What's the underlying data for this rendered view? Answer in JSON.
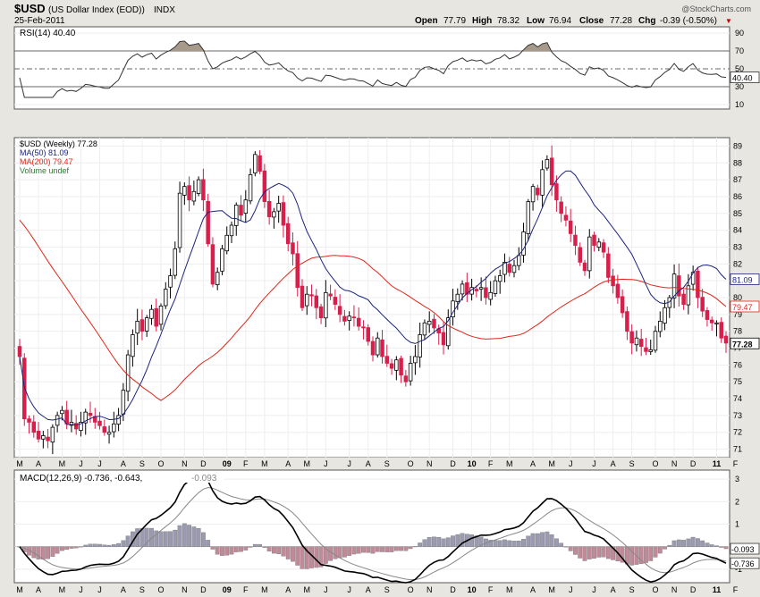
{
  "header": {
    "symbol": "$USD",
    "name": "(US Dollar Index (EOD))",
    "exchange": "INDX",
    "date": "25-Feb-2011",
    "watermark": "@StockCharts.com",
    "open_label": "Open",
    "open": "77.79",
    "high_label": "High",
    "high": "78.32",
    "low_label": "Low",
    "low": "76.94",
    "close_label": "Close",
    "close": "77.28",
    "chg_label": "Chg",
    "chg": "-0.39 (-0.50%)",
    "chg_arrow": "▼"
  },
  "colors": {
    "up_candle": "#ffffff",
    "down_candle": "#d81e4a",
    "ma50": "#1a237e",
    "ma200": "#e0261a",
    "rsi": "#333333",
    "macd": "#000000",
    "signal": "#888888",
    "hist": "#9a9ab0",
    "hist_neg": "#c08a98"
  },
  "rsi_panel": {
    "label": "RSI(14) 40.40",
    "levels": [
      10,
      30,
      50,
      70,
      90
    ],
    "current_value": "40.40"
  },
  "price_panel": {
    "legend": [
      {
        "text": "$USD (Weekly) 77.28",
        "color": "#000000"
      },
      {
        "text": "MA(50) 81.09",
        "color": "#1a237e"
      },
      {
        "text": "MA(200) 79.47",
        "color": "#e0261a"
      },
      {
        "text": "Volume undef",
        "color": "#2e7d32"
      }
    ],
    "yticks": [
      71,
      72,
      73,
      74,
      75,
      76,
      77,
      78,
      79,
      80,
      81,
      82,
      83,
      84,
      85,
      86,
      87,
      88,
      89
    ],
    "badges": [
      {
        "text": "81.09",
        "value": 81.09,
        "color": "#1a237e",
        "bg": "#ffffff"
      },
      {
        "text": "79.47",
        "value": 79.47,
        "color": "#e0261a",
        "bg": "#ffffff"
      },
      {
        "text": "77.28",
        "value": 77.28,
        "color": "#000000",
        "bg": "#ffffff"
      }
    ]
  },
  "macd_panel": {
    "label": "MACD(12,26,9) -0.736, -0.643, ",
    "label_hist": "-0.093",
    "yticks": [
      -1,
      0,
      1,
      2,
      3
    ],
    "badges": [
      {
        "text": "-0.093",
        "value": -0.093
      },
      {
        "text": "-0.736",
        "value": -0.736
      }
    ]
  },
  "x_axis": {
    "labels": [
      {
        "text": "M",
        "week": 0
      },
      {
        "text": "A",
        "week": 4
      },
      {
        "text": "M",
        "week": 9
      },
      {
        "text": "J",
        "week": 13
      },
      {
        "text": "J",
        "week": 17
      },
      {
        "text": "A",
        "week": 22
      },
      {
        "text": "S",
        "week": 26
      },
      {
        "text": "O",
        "week": 30
      },
      {
        "text": "N",
        "week": 35
      },
      {
        "text": "D",
        "week": 39
      },
      {
        "text": "09",
        "week": 44,
        "bold": true
      },
      {
        "text": "F",
        "week": 48
      },
      {
        "text": "M",
        "week": 52
      },
      {
        "text": "A",
        "week": 57
      },
      {
        "text": "M",
        "week": 61
      },
      {
        "text": "J",
        "week": 65
      },
      {
        "text": "J",
        "week": 70
      },
      {
        "text": "A",
        "week": 74
      },
      {
        "text": "S",
        "week": 78
      },
      {
        "text": "O",
        "week": 83
      },
      {
        "text": "N",
        "week": 87
      },
      {
        "text": "D",
        "week": 92
      },
      {
        "text": "10",
        "week": 96,
        "bold": true
      },
      {
        "text": "F",
        "week": 100
      },
      {
        "text": "M",
        "week": 104
      },
      {
        "text": "A",
        "week": 109
      },
      {
        "text": "M",
        "week": 113
      },
      {
        "text": "J",
        "week": 117
      },
      {
        "text": "J",
        "week": 122
      },
      {
        "text": "A",
        "week": 126
      },
      {
        "text": "S",
        "week": 130
      },
      {
        "text": "O",
        "week": 135
      },
      {
        "text": "N",
        "week": 139
      },
      {
        "text": "D",
        "week": 143
      },
      {
        "text": "11",
        "week": 148,
        "bold": true
      },
      {
        "text": "F",
        "week": 152
      }
    ]
  },
  "chart_data": {
    "type": "candlestick",
    "title": "$USD (US Dollar Index (EOD)) INDX",
    "interval": "Weekly",
    "x_start": "Mar 2008",
    "x_end": "Feb 2011",
    "ylim": [
      70.5,
      89.5
    ],
    "close": [
      76.5,
      72.8,
      72.6,
      72.0,
      71.6,
      71.8,
      71.5,
      72.3,
      73.0,
      73.3,
      72.5,
      72.6,
      72.2,
      72.6,
      73.2,
      73.0,
      72.6,
      72.4,
      72.0,
      72.0,
      72.5,
      73.0,
      74.5,
      76.6,
      77.8,
      78.6,
      78.0,
      78.8,
      79.3,
      78.3,
      79.5,
      80.5,
      81.3,
      82.9,
      86.2,
      86.6,
      85.8,
      86.3,
      87.0,
      85.8,
      83.2,
      80.8,
      81.5,
      82.9,
      83.7,
      84.3,
      85.5,
      84.9,
      85.8,
      87.3,
      88.5,
      87.5,
      85.7,
      84.8,
      85.1,
      85.6,
      84.3,
      83.2,
      82.6,
      80.6,
      79.4,
      80.2,
      80.1,
      79.4,
      78.8,
      80.3,
      80.1,
      79.6,
      79.0,
      78.6,
      78.9,
      78.8,
      78.3,
      78.2,
      77.4,
      76.6,
      77.6,
      76.5,
      76.1,
      75.8,
      76.3,
      75.4,
      75.0,
      76.1,
      76.5,
      77.8,
      78.5,
      78.6,
      78.2,
      77.9,
      77.2,
      78.8,
      79.8,
      80.2,
      80.8,
      80.2,
      80.6,
      80.4,
      80.6,
      80.0,
      80.3,
      81.0,
      81.3,
      82.1,
      81.5,
      81.9,
      82.5,
      83.9,
      85.7,
      86.6,
      86.1,
      87.6,
      88.2,
      86.7,
      85.8,
      85.0,
      84.6,
      83.8,
      83.1,
      82.1,
      81.6,
      83.6,
      83.1,
      83.3,
      82.7,
      81.2,
      80.7,
      80.0,
      79.1,
      78.0,
      77.3,
      77.6,
      77.1,
      76.8,
      76.9,
      78.0,
      78.6,
      79.4,
      80.0,
      81.4,
      80.1,
      79.6,
      80.7,
      81.5,
      80.0,
      79.2,
      78.7,
      78.5,
      78.5,
      77.6,
      77.3
    ],
    "rsi": {
      "current": 40.4,
      "overbought": 70,
      "oversold": 30
    },
    "ma50_last": 81.09,
    "ma200_last": 79.47,
    "macd_last": {
      "macd": -0.736,
      "signal": -0.643,
      "histogram": -0.093
    }
  }
}
